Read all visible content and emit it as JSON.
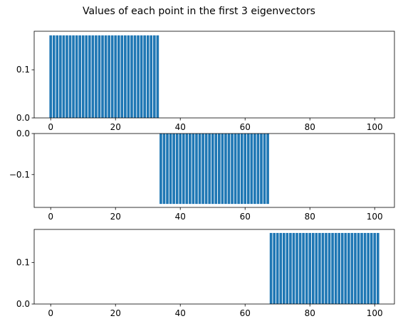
{
  "title": "Values of each point in the first 3 eigenvectors",
  "chart_data": [
    {
      "type": "bar",
      "panel": "eigenvector-1",
      "x_range": [
        0,
        33
      ],
      "value": 0.1715,
      "xlim": [
        -5.1,
        106.1
      ],
      "ylim": [
        0,
        0.18
      ],
      "xticks": [
        0,
        20,
        40,
        60,
        80,
        100
      ],
      "yticks": [
        0,
        0.1
      ],
      "ytick_labels": [
        "0.0",
        "0.1"
      ],
      "color": "#1f77b4"
    },
    {
      "type": "bar",
      "panel": "eigenvector-2",
      "x_range": [
        34,
        67
      ],
      "value": -0.1715,
      "xlim": [
        -5.1,
        106.1
      ],
      "ylim": [
        -0.18,
        0
      ],
      "xticks": [
        0,
        20,
        40,
        60,
        80,
        100
      ],
      "yticks": [
        0,
        -0.1
      ],
      "ytick_labels": [
        "0.0",
        "−0.1"
      ],
      "color": "#1f77b4"
    },
    {
      "type": "bar",
      "panel": "eigenvector-3",
      "x_range": [
        68,
        101
      ],
      "value": 0.1715,
      "xlim": [
        -5.1,
        106.1
      ],
      "ylim": [
        0,
        0.18
      ],
      "xticks": [
        0,
        20,
        40,
        60,
        80,
        100
      ],
      "yticks": [
        0,
        0.1
      ],
      "ytick_labels": [
        "0.0",
        "0.1"
      ],
      "color": "#1f77b4"
    }
  ]
}
